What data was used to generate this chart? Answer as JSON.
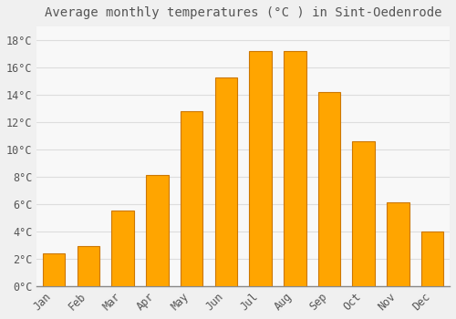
{
  "title": "Average monthly temperatures (°C ) in Sint-Oedenrode",
  "months": [
    "Jan",
    "Feb",
    "Mar",
    "Apr",
    "May",
    "Jun",
    "Jul",
    "Aug",
    "Sep",
    "Oct",
    "Nov",
    "Dec"
  ],
  "values": [
    2.4,
    2.9,
    5.5,
    8.1,
    12.8,
    15.3,
    17.2,
    17.2,
    14.2,
    10.6,
    6.1,
    4.0
  ],
  "bar_face_color": "#FFA500",
  "bar_edge_color": "#CC7700",
  "background_color": "#F0F0F0",
  "plot_bg_color": "#F8F8F8",
  "grid_color": "#DDDDDD",
  "text_color": "#555555",
  "ylim": [
    0,
    19
  ],
  "yticks": [
    0,
    2,
    4,
    6,
    8,
    10,
    12,
    14,
    16,
    18
  ],
  "title_fontsize": 10,
  "tick_fontsize": 8.5,
  "font_family": "monospace"
}
